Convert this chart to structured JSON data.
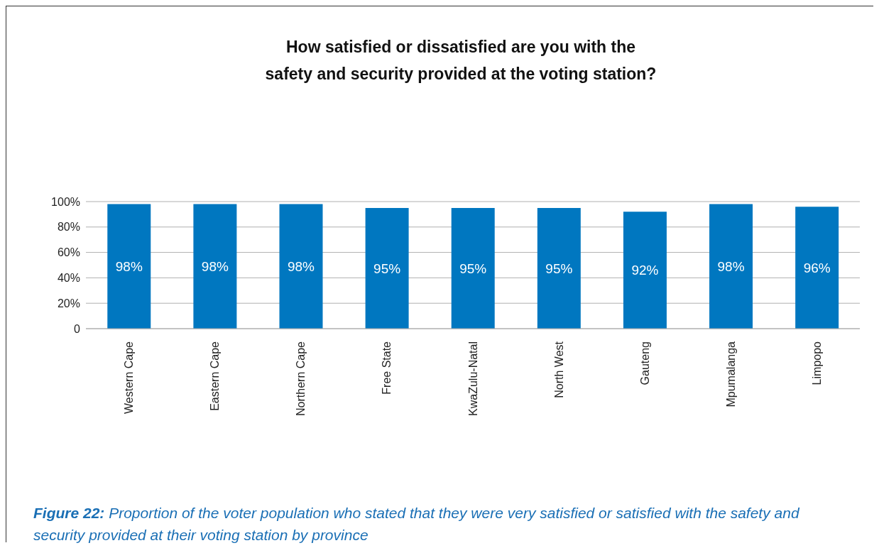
{
  "chart_data": {
    "type": "bar",
    "title": "How satisfied or dissatisfied are you with the safety and security provided at the voting station?",
    "categories": [
      "Western Cape",
      "Eastern Cape",
      "Northern Cape",
      "Free State",
      "KwaZulu-Natal",
      "North West",
      "Gauteng",
      "Mpumalanga",
      "Limpopo"
    ],
    "values": [
      98,
      98,
      98,
      95,
      95,
      95,
      92,
      98,
      96
    ],
    "value_labels": [
      "98%",
      "98%",
      "98%",
      "95%",
      "95%",
      "95%",
      "92%",
      "98%",
      "96%"
    ],
    "color": "#0077c0",
    "ylim": [
      0,
      100
    ],
    "yticks": [
      0,
      {
        "value": 20,
        "label": "20%"
      },
      {
        "value": 40,
        "label": "40%"
      },
      {
        "value": 60,
        "label": "60%"
      },
      {
        "value": 80,
        "label": "80%"
      },
      {
        "value": 100,
        "label": "100%"
      }
    ],
    "grid": "y",
    "legend": false,
    "annotations": [
      "Figure 22: Proportion of the voter population who stated that they were very satisfied or satisfied with the safety and security provided at their voting station by province"
    ]
  }
}
